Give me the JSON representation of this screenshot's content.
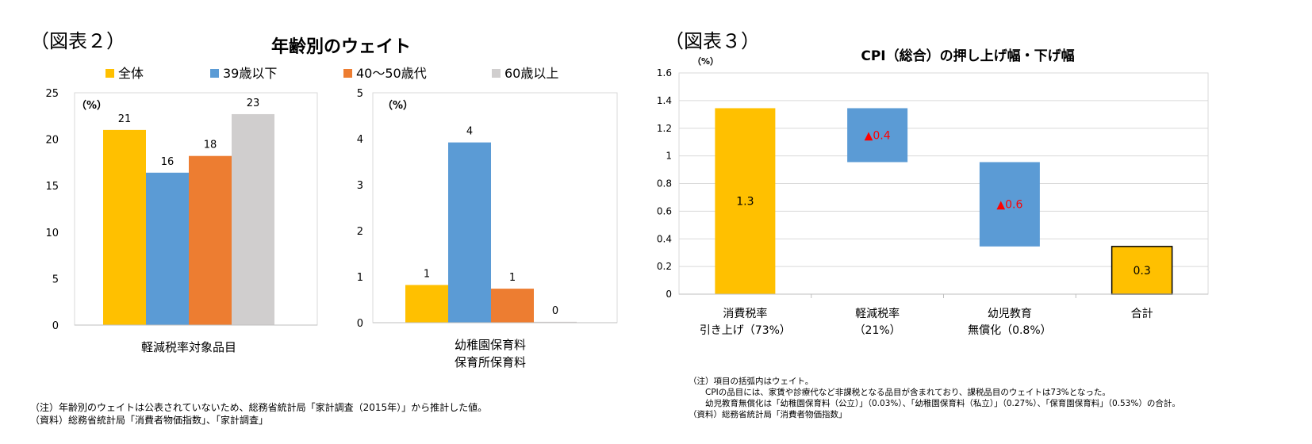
{
  "figure2": {
    "label": "（図表２）",
    "title": "年齢別のウェイト",
    "legend": [
      "全体",
      "39歳以下",
      "40～50歳代",
      "60歳以上"
    ],
    "colors": [
      "#ffc000",
      "#5b9bd5",
      "#ed7d31",
      "#d0cece"
    ],
    "notes": [
      "（注）年齢別のウェイトは公表されていないため、総務省統計局「家計調査（2015年）」から推計した値。",
      "（資料）総務省統計局「消費者物価指数」、「家計調査」"
    ]
  },
  "figure3": {
    "label": "（図表３）",
    "notes": [
      "（注）項目の括弧内はウェイト。",
      "　　CPIの品目には、家賃や診療代など非課税となる品目が含まれており、課税品目のウェイトは73%となった。",
      "　　幼児教育無償化は「幼稚園保育料（公立）」（0.03%）、「幼稚園保育料（私立）」（0.27%）、「保育園保育料」（0.53%）の合計。",
      "（資料）総務省統計局「消費者物価指数」"
    ]
  },
  "chart_data": [
    {
      "type": "bar",
      "unit_label": "（%）",
      "xlabel": "軽減税率対象品目",
      "ylim": [
        0,
        25
      ],
      "yticks": [
        0,
        5,
        10,
        15,
        20,
        25
      ],
      "series": [
        {
          "name": "全体",
          "value": 21.0,
          "label": "21"
        },
        {
          "name": "39歳以下",
          "value": 16.4,
          "label": "16"
        },
        {
          "name": "40～50歳代",
          "value": 18.2,
          "label": "18"
        },
        {
          "name": "60歳以上",
          "value": 22.7,
          "label": "23"
        }
      ]
    },
    {
      "type": "bar",
      "unit_label": "（%）",
      "xlabel": [
        "幼稚園保育料",
        "保育所保育料"
      ],
      "ylim": [
        0,
        5
      ],
      "yticks": [
        0,
        1,
        2,
        3,
        4,
        5
      ],
      "series": [
        {
          "name": "全体",
          "value": 0.82,
          "label": "1"
        },
        {
          "name": "39歳以下",
          "value": 3.92,
          "label": "4"
        },
        {
          "name": "40～50歳代",
          "value": 0.74,
          "label": "1"
        },
        {
          "name": "60歳以上",
          "value": 0.02,
          "label": "0"
        }
      ]
    },
    {
      "type": "bar",
      "subtype": "waterfall",
      "title": "CPI（総合）の押し上げ幅・下げ幅",
      "unit_label": "（%）",
      "ylim": [
        0,
        1.6
      ],
      "yticks": [
        "0",
        "0.2",
        "0.4",
        "0.6",
        "0.8",
        "1",
        "1.2",
        "1.4",
        "1.6"
      ],
      "grid": true,
      "categories": [
        [
          "消費税率",
          "引き上げ（73%）"
        ],
        [
          "軽減税率",
          "（21%）"
        ],
        [
          "幼児教育",
          "無償化（0.8%）"
        ],
        [
          "合計"
        ]
      ],
      "bars": [
        {
          "low": 0,
          "high": 1.345,
          "label": "1.3",
          "color": "#ffc000",
          "label_color": "#000000"
        },
        {
          "low": 0.955,
          "high": 1.345,
          "label": "▲0.4",
          "color": "#5b9bd5",
          "label_color": "#ff0000"
        },
        {
          "low": 0.345,
          "high": 0.955,
          "label": "▲0.6",
          "color": "#5b9bd5",
          "label_color": "#ff0000"
        },
        {
          "low": 0,
          "high": 0.345,
          "label": "0.3",
          "color": "#ffc000",
          "label_color": "#000000",
          "outline": true
        }
      ]
    }
  ]
}
